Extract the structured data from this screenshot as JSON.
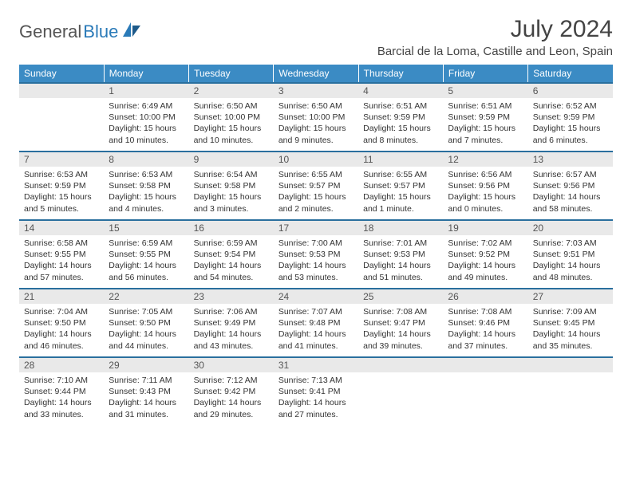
{
  "logo": {
    "text1": "General",
    "text2": "Blue"
  },
  "title": "July 2024",
  "location": "Barcial de la Loma, Castille and Leon, Spain",
  "colors": {
    "header_bg": "#3b8bc4",
    "header_text": "#ffffff",
    "row_border": "#2a6f9e",
    "daynum_bg": "#e9e9e9",
    "logo_blue": "#2a7ab8",
    "logo_gray": "#555555"
  },
  "weekdays": [
    "Sunday",
    "Monday",
    "Tuesday",
    "Wednesday",
    "Thursday",
    "Friday",
    "Saturday"
  ],
  "weeks": [
    [
      null,
      {
        "n": "1",
        "sr": "6:49 AM",
        "ss": "10:00 PM",
        "dl": "15 hours and 10 minutes."
      },
      {
        "n": "2",
        "sr": "6:50 AM",
        "ss": "10:00 PM",
        "dl": "15 hours and 10 minutes."
      },
      {
        "n": "3",
        "sr": "6:50 AM",
        "ss": "10:00 PM",
        "dl": "15 hours and 9 minutes."
      },
      {
        "n": "4",
        "sr": "6:51 AM",
        "ss": "9:59 PM",
        "dl": "15 hours and 8 minutes."
      },
      {
        "n": "5",
        "sr": "6:51 AM",
        "ss": "9:59 PM",
        "dl": "15 hours and 7 minutes."
      },
      {
        "n": "6",
        "sr": "6:52 AM",
        "ss": "9:59 PM",
        "dl": "15 hours and 6 minutes."
      }
    ],
    [
      {
        "n": "7",
        "sr": "6:53 AM",
        "ss": "9:59 PM",
        "dl": "15 hours and 5 minutes."
      },
      {
        "n": "8",
        "sr": "6:53 AM",
        "ss": "9:58 PM",
        "dl": "15 hours and 4 minutes."
      },
      {
        "n": "9",
        "sr": "6:54 AM",
        "ss": "9:58 PM",
        "dl": "15 hours and 3 minutes."
      },
      {
        "n": "10",
        "sr": "6:55 AM",
        "ss": "9:57 PM",
        "dl": "15 hours and 2 minutes."
      },
      {
        "n": "11",
        "sr": "6:55 AM",
        "ss": "9:57 PM",
        "dl": "15 hours and 1 minute."
      },
      {
        "n": "12",
        "sr": "6:56 AM",
        "ss": "9:56 PM",
        "dl": "15 hours and 0 minutes."
      },
      {
        "n": "13",
        "sr": "6:57 AM",
        "ss": "9:56 PM",
        "dl": "14 hours and 58 minutes."
      }
    ],
    [
      {
        "n": "14",
        "sr": "6:58 AM",
        "ss": "9:55 PM",
        "dl": "14 hours and 57 minutes."
      },
      {
        "n": "15",
        "sr": "6:59 AM",
        "ss": "9:55 PM",
        "dl": "14 hours and 56 minutes."
      },
      {
        "n": "16",
        "sr": "6:59 AM",
        "ss": "9:54 PM",
        "dl": "14 hours and 54 minutes."
      },
      {
        "n": "17",
        "sr": "7:00 AM",
        "ss": "9:53 PM",
        "dl": "14 hours and 53 minutes."
      },
      {
        "n": "18",
        "sr": "7:01 AM",
        "ss": "9:53 PM",
        "dl": "14 hours and 51 minutes."
      },
      {
        "n": "19",
        "sr": "7:02 AM",
        "ss": "9:52 PM",
        "dl": "14 hours and 49 minutes."
      },
      {
        "n": "20",
        "sr": "7:03 AM",
        "ss": "9:51 PM",
        "dl": "14 hours and 48 minutes."
      }
    ],
    [
      {
        "n": "21",
        "sr": "7:04 AM",
        "ss": "9:50 PM",
        "dl": "14 hours and 46 minutes."
      },
      {
        "n": "22",
        "sr": "7:05 AM",
        "ss": "9:50 PM",
        "dl": "14 hours and 44 minutes."
      },
      {
        "n": "23",
        "sr": "7:06 AM",
        "ss": "9:49 PM",
        "dl": "14 hours and 43 minutes."
      },
      {
        "n": "24",
        "sr": "7:07 AM",
        "ss": "9:48 PM",
        "dl": "14 hours and 41 minutes."
      },
      {
        "n": "25",
        "sr": "7:08 AM",
        "ss": "9:47 PM",
        "dl": "14 hours and 39 minutes."
      },
      {
        "n": "26",
        "sr": "7:08 AM",
        "ss": "9:46 PM",
        "dl": "14 hours and 37 minutes."
      },
      {
        "n": "27",
        "sr": "7:09 AM",
        "ss": "9:45 PM",
        "dl": "14 hours and 35 minutes."
      }
    ],
    [
      {
        "n": "28",
        "sr": "7:10 AM",
        "ss": "9:44 PM",
        "dl": "14 hours and 33 minutes."
      },
      {
        "n": "29",
        "sr": "7:11 AM",
        "ss": "9:43 PM",
        "dl": "14 hours and 31 minutes."
      },
      {
        "n": "30",
        "sr": "7:12 AM",
        "ss": "9:42 PM",
        "dl": "14 hours and 29 minutes."
      },
      {
        "n": "31",
        "sr": "7:13 AM",
        "ss": "9:41 PM",
        "dl": "14 hours and 27 minutes."
      },
      null,
      null,
      null
    ]
  ],
  "labels": {
    "sunrise": "Sunrise:",
    "sunset": "Sunset:",
    "daylight": "Daylight:"
  }
}
